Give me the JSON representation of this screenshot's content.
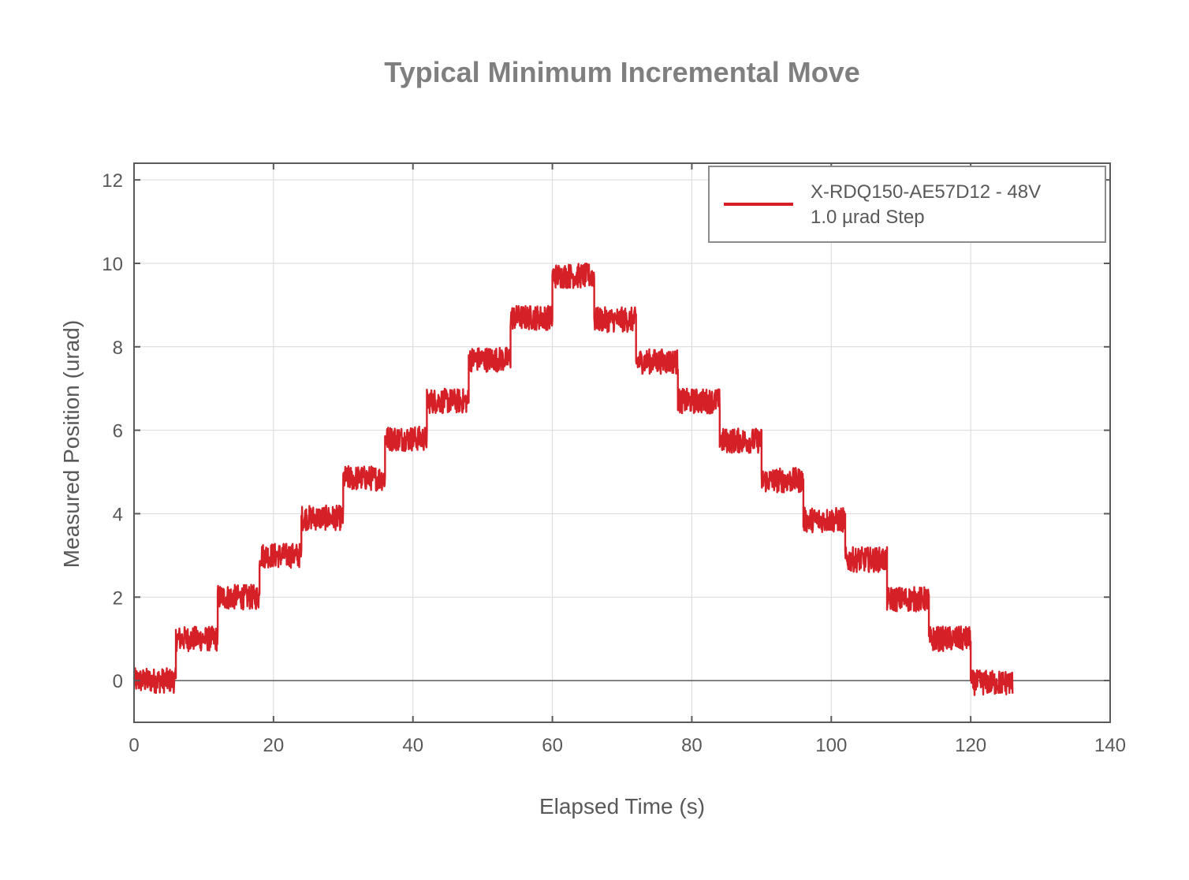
{
  "chart_data": {
    "type": "line",
    "title": "Typical Minimum Incremental Move",
    "xlabel": "Elapsed Time (s)",
    "ylabel": "Measured Position (urad)",
    "xlim": [
      0,
      140
    ],
    "ylim": [
      -1,
      12.4
    ],
    "x_ticks": [
      0,
      20,
      40,
      60,
      80,
      100,
      120,
      140
    ],
    "x_tick_labels": [
      "0",
      "20",
      "40",
      "60",
      "80",
      "100",
      "120",
      "140"
    ],
    "y_ticks": [
      0,
      2,
      4,
      6,
      8,
      10,
      12
    ],
    "y_tick_labels": [
      "0",
      "2",
      "4",
      "6",
      "8",
      "10",
      "12"
    ],
    "grid": true,
    "legend_position": "top-right",
    "legend": [
      "X-RDQ150-AE57D12 - 48V",
      "1.0 µrad Step"
    ],
    "series": [
      {
        "name": "X-RDQ150-AE57D12 - 48V",
        "color": "#d62027",
        "noise_amplitude": 0.3,
        "steps": [
          {
            "t_start": 0,
            "t_end": 6,
            "level": 0
          },
          {
            "t_start": 6,
            "t_end": 12,
            "level": 1
          },
          {
            "t_start": 12,
            "t_end": 18,
            "level": 2
          },
          {
            "t_start": 18,
            "t_end": 24,
            "level": 3
          },
          {
            "t_start": 24,
            "t_end": 30,
            "level": 3.9
          },
          {
            "t_start": 30,
            "t_end": 36,
            "level": 4.85
          },
          {
            "t_start": 36,
            "t_end": 42,
            "level": 5.8
          },
          {
            "t_start": 42,
            "t_end": 48,
            "level": 6.7
          },
          {
            "t_start": 48,
            "t_end": 54,
            "level": 7.7
          },
          {
            "t_start": 54,
            "t_end": 60,
            "level": 8.7
          },
          {
            "t_start": 60,
            "t_end": 66,
            "level": 9.7
          },
          {
            "t_start": 66,
            "t_end": 72,
            "level": 8.65
          },
          {
            "t_start": 72,
            "t_end": 78,
            "level": 7.65
          },
          {
            "t_start": 78,
            "t_end": 84,
            "level": 6.7
          },
          {
            "t_start": 84,
            "t_end": 90,
            "level": 5.75
          },
          {
            "t_start": 90,
            "t_end": 96,
            "level": 4.8
          },
          {
            "t_start": 96,
            "t_end": 102,
            "level": 3.85
          },
          {
            "t_start": 102,
            "t_end": 108,
            "level": 2.9
          },
          {
            "t_start": 108,
            "t_end": 114,
            "level": 1.95
          },
          {
            "t_start": 114,
            "t_end": 120,
            "level": 1
          },
          {
            "t_start": 120,
            "t_end": 126,
            "level": -0.05
          }
        ]
      }
    ]
  }
}
